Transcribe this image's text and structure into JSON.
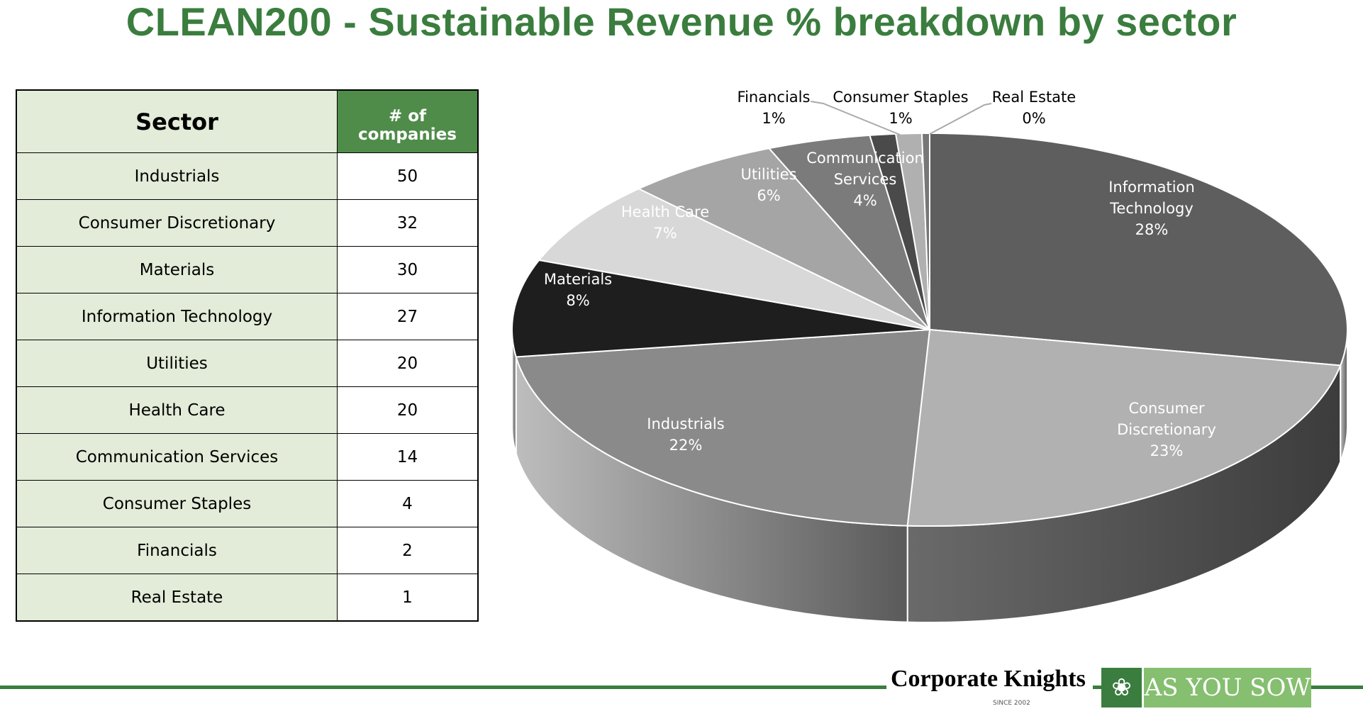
{
  "title": "CLEAN200 - Sustainable Revenue % breakdown by sector",
  "table": {
    "headers": [
      "Sector",
      "# of companies"
    ],
    "rows": [
      [
        "Industrials",
        "50"
      ],
      [
        "Consumer Discretionary",
        "32"
      ],
      [
        "Materials",
        "30"
      ],
      [
        "Information Technology",
        "27"
      ],
      [
        "Utilities",
        "20"
      ],
      [
        "Health Care",
        "20"
      ],
      [
        "Communication Services",
        "14"
      ],
      [
        "Consumer Staples",
        "4"
      ],
      [
        "Financials",
        "2"
      ],
      [
        "Real Estate",
        "1"
      ]
    ]
  },
  "chart_data": {
    "type": "pie",
    "style": "3d",
    "start": "12 o'clock, clockwise",
    "slices": [
      {
        "label": "Information Technology",
        "label_lines": [
          "Information",
          "Technology"
        ],
        "value": 28,
        "pct": "28%",
        "color": "#5e5e5e"
      },
      {
        "label": "Consumer Discretionary",
        "label_lines": [
          "Consumer",
          "Discretionary"
        ],
        "value": 23,
        "pct": "23%",
        "color": "#b1b1b1"
      },
      {
        "label": "Industrials",
        "label_lines": [
          "Industrials"
        ],
        "value": 22,
        "pct": "22%",
        "color": "#8a8a8a"
      },
      {
        "label": "Materials",
        "label_lines": [
          "Materials"
        ],
        "value": 8,
        "pct": "8%",
        "color": "#1e1e1e"
      },
      {
        "label": "Health Care",
        "label_lines": [
          "Health Care"
        ],
        "value": 7,
        "pct": "7%",
        "color": "#d8d8d8"
      },
      {
        "label": "Utilities",
        "label_lines": [
          "Utilities"
        ],
        "value": 6,
        "pct": "6%",
        "color": "#a5a5a5"
      },
      {
        "label": "Communication Services",
        "label_lines": [
          "Communication",
          "Services"
        ],
        "value": 4,
        "pct": "4%",
        "color": "#7b7b7b"
      },
      {
        "label": "Financials",
        "label_lines": [
          "Financials"
        ],
        "value": 1,
        "pct": "1%",
        "color": "#4a4a4a"
      },
      {
        "label": "Consumer Staples",
        "label_lines": [
          "Consumer Staples"
        ],
        "value": 1,
        "pct": "1%",
        "color": "#b0b0b0"
      },
      {
        "label": "Real Estate",
        "label_lines": [
          "Real Estate"
        ],
        "value": 0,
        "pct": "0%",
        "color": "#777777"
      }
    ]
  },
  "footer": {
    "logo1": "Corporate Knights",
    "logo1_sub": "SINCE 2002",
    "logo2": "AS YOU SOW",
    "accent": "#3a7d3e"
  }
}
